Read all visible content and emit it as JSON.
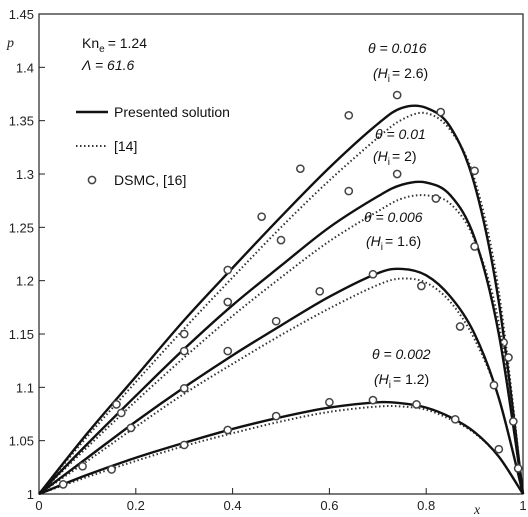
{
  "chart_data": {
    "type": "line",
    "xlabel": "x",
    "ylabel": "p",
    "xlim": [
      0,
      1
    ],
    "ylim": [
      1,
      1.45
    ],
    "x_ticks": [
      "0",
      "0.2",
      "0.4",
      "0.6",
      "0.8",
      "1"
    ],
    "y_ticks": [
      "1",
      "1.05",
      "1.1",
      "1.15",
      "1.2",
      "1.25",
      "1.3",
      "1.35",
      "1.4",
      "1.45"
    ],
    "parameters": {
      "kn_prefix": "Kn",
      "kn_sub": "e",
      "kn_value": "= 1.24",
      "lambda_text": "Λ = 61.6"
    },
    "legend": {
      "placement": "top-left",
      "entries": [
        {
          "label": "Presented solution",
          "style": "solid"
        },
        {
          "label": "[14]",
          "style": "dotted"
        },
        {
          "label": "DSMC, [16]",
          "style": "circle"
        }
      ]
    },
    "annotations": [
      {
        "theta": "θ = 0.016",
        "hi_value": "= 2.6)",
        "for": "theta-0.016"
      },
      {
        "theta": "θ = 0.01",
        "hi_value": "= 2)",
        "for": "theta-0.01"
      },
      {
        "theta": "θ = 0.006",
        "hi_value": "= 1.6)",
        "for": "theta-0.006"
      },
      {
        "theta": "θ = 0.002",
        "hi_value": "= 1.2)",
        "for": "theta-0.002"
      }
    ],
    "hi_symbol": "(H",
    "hi_sub": "i",
    "series": [
      {
        "id": "theta-0.016",
        "solid": {
          "x": [
            0,
            0.1,
            0.2,
            0.3,
            0.4,
            0.5,
            0.6,
            0.7,
            0.75,
            0.8,
            0.85,
            0.9,
            0.95,
            1.0
          ],
          "y": [
            1.0,
            1.057,
            1.11,
            1.163,
            1.212,
            1.26,
            1.306,
            1.347,
            1.362,
            1.362,
            1.344,
            1.29,
            1.18,
            1.0
          ]
        },
        "dotted": {
          "x": [
            0,
            0.1,
            0.2,
            0.3,
            0.4,
            0.5,
            0.6,
            0.7,
            0.75,
            0.8,
            0.85,
            0.9,
            0.95,
            1.0
          ],
          "y": [
            1.0,
            1.054,
            1.105,
            1.155,
            1.203,
            1.25,
            1.294,
            1.334,
            1.351,
            1.357,
            1.341,
            1.295,
            1.19,
            1.0
          ]
        },
        "dsmc": {
          "x": [
            0.16,
            0.3,
            0.39,
            0.46,
            0.54,
            0.64,
            0.74,
            0.83,
            0.9,
            0.96
          ],
          "y": [
            1.084,
            1.15,
            1.21,
            1.26,
            1.305,
            1.355,
            1.374,
            1.358,
            1.303,
            1.142
          ]
        }
      },
      {
        "id": "theta-0.01",
        "solid": {
          "x": [
            0,
            0.1,
            0.2,
            0.3,
            0.4,
            0.5,
            0.6,
            0.7,
            0.75,
            0.8,
            0.85,
            0.9,
            0.95,
            1.0
          ],
          "y": [
            1.0,
            1.047,
            1.092,
            1.136,
            1.177,
            1.214,
            1.25,
            1.279,
            1.29,
            1.292,
            1.28,
            1.24,
            1.15,
            1.0
          ]
        },
        "dotted": {
          "x": [
            0,
            0.1,
            0.2,
            0.3,
            0.4,
            0.5,
            0.6,
            0.7,
            0.75,
            0.8,
            0.85,
            0.9,
            0.95,
            1.0
          ],
          "y": [
            1.0,
            1.044,
            1.087,
            1.128,
            1.167,
            1.203,
            1.237,
            1.265,
            1.277,
            1.28,
            1.272,
            1.238,
            1.16,
            1.0
          ]
        },
        "dsmc": {
          "x": [
            0.17,
            0.3,
            0.39,
            0.5,
            0.64,
            0.74,
            0.82,
            0.9,
            0.97
          ],
          "y": [
            1.076,
            1.134,
            1.18,
            1.238,
            1.284,
            1.3,
            1.277,
            1.232,
            1.128
          ]
        }
      },
      {
        "id": "theta-0.006",
        "solid": {
          "x": [
            0,
            0.1,
            0.2,
            0.3,
            0.4,
            0.5,
            0.6,
            0.7,
            0.75,
            0.8,
            0.85,
            0.9,
            0.95,
            1.0
          ],
          "y": [
            1.0,
            1.034,
            1.068,
            1.1,
            1.13,
            1.158,
            1.185,
            1.207,
            1.211,
            1.205,
            1.185,
            1.15,
            1.09,
            1.0
          ]
        },
        "dotted": {
          "x": [
            0,
            0.1,
            0.2,
            0.3,
            0.4,
            0.5,
            0.6,
            0.7,
            0.75,
            0.8,
            0.85,
            0.9,
            0.95,
            1.0
          ],
          "y": [
            1.0,
            1.031,
            1.063,
            1.094,
            1.122,
            1.149,
            1.174,
            1.196,
            1.202,
            1.198,
            1.18,
            1.145,
            1.09,
            1.0
          ]
        },
        "dsmc": {
          "x": [
            0.19,
            0.3,
            0.39,
            0.49,
            0.58,
            0.69,
            0.79,
            0.87,
            0.94,
            0.98
          ],
          "y": [
            1.062,
            1.099,
            1.134,
            1.162,
            1.19,
            1.206,
            1.195,
            1.157,
            1.102,
            1.068
          ]
        }
      },
      {
        "id": "theta-0.002",
        "solid": {
          "x": [
            0,
            0.1,
            0.2,
            0.3,
            0.4,
            0.5,
            0.6,
            0.7,
            0.75,
            0.8,
            0.85,
            0.9,
            0.95,
            1.0
          ],
          "y": [
            1.0,
            1.018,
            1.034,
            1.048,
            1.061,
            1.072,
            1.081,
            1.086,
            1.085,
            1.081,
            1.072,
            1.058,
            1.035,
            1.0
          ]
        },
        "dotted": {
          "x": [
            0,
            0.1,
            0.2,
            0.3,
            0.4,
            0.5,
            0.6,
            0.7,
            0.75,
            0.8,
            0.85,
            0.9,
            0.95,
            1.0
          ],
          "y": [
            1.0,
            1.016,
            1.031,
            1.045,
            1.057,
            1.068,
            1.077,
            1.082,
            1.082,
            1.079,
            1.07,
            1.057,
            1.035,
            1.0
          ]
        },
        "dsmc": {
          "x": [
            0.05,
            0.09,
            0.15,
            0.3,
            0.39,
            0.49,
            0.6,
            0.69,
            0.78,
            0.86,
            0.95,
            0.99
          ],
          "y": [
            1.009,
            1.026,
            1.023,
            1.046,
            1.06,
            1.073,
            1.086,
            1.088,
            1.084,
            1.07,
            1.042,
            1.024
          ]
        }
      }
    ]
  }
}
